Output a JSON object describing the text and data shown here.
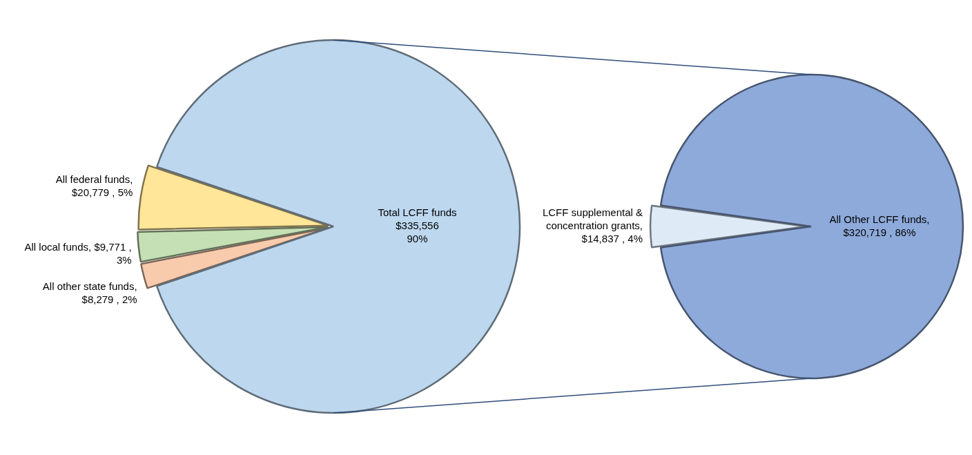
{
  "chart_data": [
    {
      "type": "pie",
      "categories": [
        "All other state funds",
        "All local funds",
        "All federal funds",
        "Total LCFF funds"
      ],
      "values": [
        8279,
        9771,
        20779,
        335556
      ],
      "colors": [
        "#f8cbad",
        "#c5e0b4",
        "#ffe699",
        "#bdd7ee"
      ],
      "value_labels": [
        ", $8,279 , 2%",
        ", $9,771 , 3%",
        ", $20,779 , 5%",
        "\n$335,556\n90%"
      ]
    },
    {
      "type": "pie",
      "categories": [
        "LCFF supplemental & concentration grants",
        "All Other LCFF funds"
      ],
      "values": [
        14837,
        320719
      ],
      "colors": [
        "#deebf7",
        "#8eaadb"
      ],
      "value_labels": [
        ", $14,837 , 4%",
        ", $320,719 , 86%"
      ]
    }
  ]
}
